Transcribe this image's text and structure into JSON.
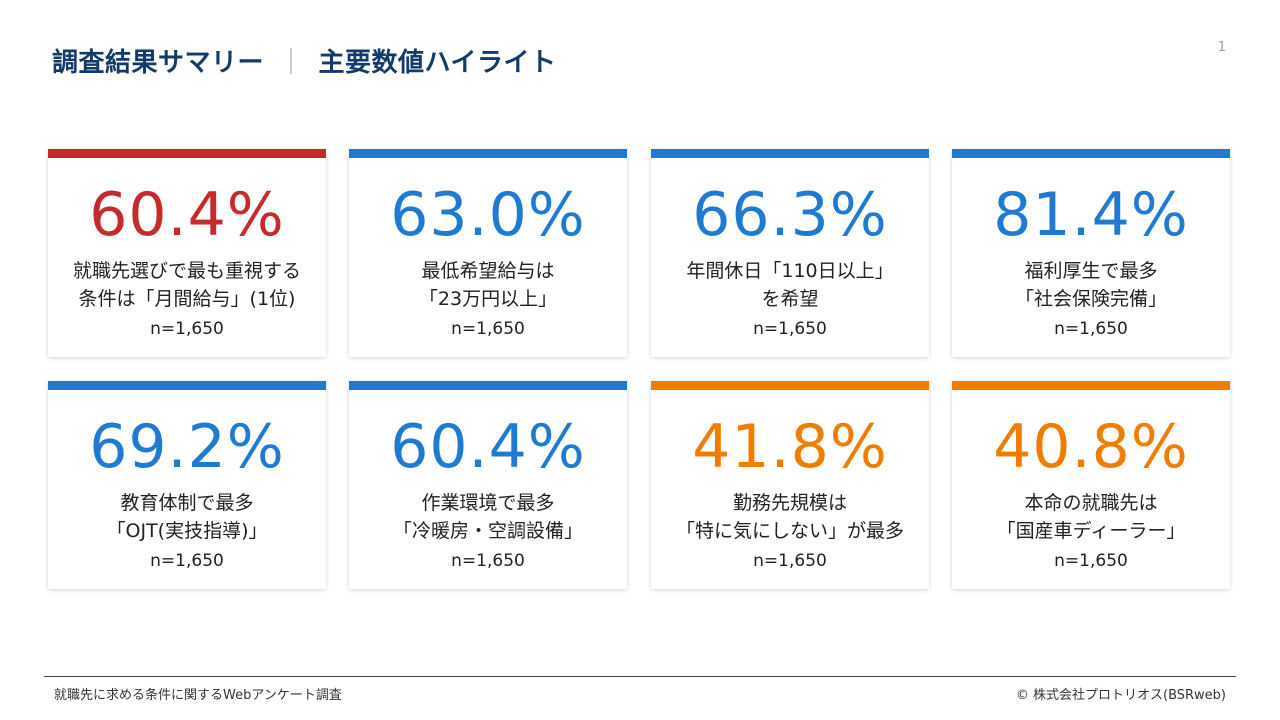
{
  "header": {
    "title_main": "調査結果サマリー",
    "separator": "｜",
    "title_sub": "主要数値ハイライト",
    "page_number": "1"
  },
  "colors": {
    "red": "#c62b2b",
    "blue": "#1f7bd1",
    "orange": "#f07d00",
    "title": "#123a6b"
  },
  "cards": [
    {
      "value": "60.4%",
      "line1": "就職先選びで最も重視する",
      "line2": "条件は「月間給与」(1位)",
      "n": "n=1,650",
      "color": "red"
    },
    {
      "value": "63.0%",
      "line1": "最低希望給与は",
      "line2": "「23万円以上」",
      "n": "n=1,650",
      "color": "blue"
    },
    {
      "value": "66.3%",
      "line1": "年間休日「110日以上」",
      "line2": "を希望",
      "n": "n=1,650",
      "color": "blue"
    },
    {
      "value": "81.4%",
      "line1": "福利厚生で最多",
      "line2": "「社会保険完備」",
      "n": "n=1,650",
      "color": "blue"
    },
    {
      "value": "69.2%",
      "line1": "教育体制で最多",
      "line2": "「OJT(実技指導)」",
      "n": "n=1,650",
      "color": "blue"
    },
    {
      "value": "60.4%",
      "line1": "作業環境で最多",
      "line2": "「冷暖房・空調設備」",
      "n": "n=1,650",
      "color": "blue"
    },
    {
      "value": "41.8%",
      "line1": "勤務先規模は",
      "line2": "「特に気にしない」が最多",
      "n": "n=1,650",
      "color": "orange"
    },
    {
      "value": "40.8%",
      "line1": "本命の就職先は",
      "line2": "「国産車ディーラー」",
      "n": "n=1,650",
      "color": "orange"
    }
  ],
  "footer": {
    "source": "就職先に求める条件に関するWebアンケート調査",
    "copyright": "©  株式会社プロトリオス(BSRweb)"
  }
}
